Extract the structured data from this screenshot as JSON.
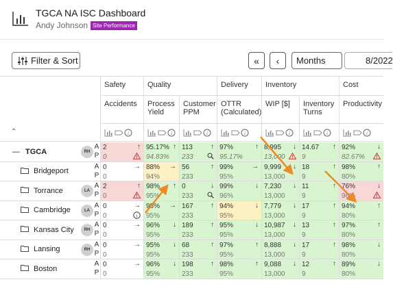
{
  "header": {
    "title": "TGCA NA ISC Dashboard",
    "user": "Andy Johnson",
    "badge": "Site Performance",
    "badge_color": "#9c27b0"
  },
  "toolbar": {
    "filter_label": "Filter & Sort",
    "first_icon": "double-chevron-left-icon",
    "prev_icon": "chevron-left-icon",
    "range": "Months",
    "date": "8/2022"
  },
  "groups": [
    {
      "name": "Safety"
    },
    {
      "name": "Quality"
    },
    {
      "name": "Delivery"
    },
    {
      "name": "Inventory"
    },
    {
      "name": "Cost"
    }
  ],
  "metrics": [
    {
      "name": "Accidents"
    },
    {
      "name": "Process Yield"
    },
    {
      "name": "Customer PPM"
    },
    {
      "name": "OTTR (Calculated)"
    },
    {
      "name": "WIP [$]"
    },
    {
      "name": "Inventory Turns"
    },
    {
      "name": "Productivity"
    }
  ],
  "collapse_icon": "collapse-all-icon",
  "ap_labels": {
    "a": "A",
    "p": "P"
  },
  "rows": [
    {
      "name": "TGCA",
      "initials": "RH",
      "level": 0,
      "toggle": "—",
      "a": [
        [
          "2",
          "↑",
          "r"
        ],
        [
          "95.17%",
          "↑",
          "g"
        ],
        [
          "113",
          "↑",
          "g"
        ],
        [
          "97%",
          "↑",
          "g"
        ],
        [
          "8,995",
          "↓",
          "g"
        ],
        [
          "14.67",
          "↑",
          "g"
        ],
        [
          "92%",
          "↓",
          "g"
        ]
      ],
      "p": [
        [
          "0",
          "warn",
          "r"
        ],
        [
          "94.83%",
          "",
          "g"
        ],
        [
          "233",
          "search",
          "g"
        ],
        [
          "95.17%",
          "",
          "g"
        ],
        [
          "13,000",
          "warn",
          "g"
        ],
        [
          "9",
          "",
          "g"
        ],
        [
          "82.67%",
          "warn",
          "g"
        ]
      ]
    },
    {
      "name": "Bridgeport",
      "initials": "",
      "level": 1,
      "a": [
        [
          "0",
          "→",
          "w"
        ],
        [
          "88%",
          "→",
          "y"
        ],
        [
          "56",
          "↑",
          "g"
        ],
        [
          "99%",
          "→",
          "g"
        ],
        [
          "9,999",
          "↓",
          "g"
        ],
        [
          "18",
          "↑",
          "g"
        ],
        [
          "98%",
          "↑",
          "g"
        ]
      ],
      "p": [
        [
          "0",
          "",
          "w"
        ],
        [
          "94%",
          "",
          "y"
        ],
        [
          "233",
          "",
          "g"
        ],
        [
          "95%",
          "",
          "g"
        ],
        [
          "13,000",
          "",
          "g"
        ],
        [
          "9",
          "",
          "g"
        ],
        [
          "80%",
          "",
          "g"
        ]
      ]
    },
    {
      "name": "Torrance",
      "initials": "LA",
      "level": 1,
      "a": [
        [
          "2",
          "↑",
          "r"
        ],
        [
          "98%",
          "↑",
          "g"
        ],
        [
          "0",
          "↓",
          "g"
        ],
        [
          "99%",
          "↓",
          "g"
        ],
        [
          "7,230",
          "↓",
          "g"
        ],
        [
          "11",
          "↑",
          "g"
        ],
        [
          "76%",
          "↓",
          "r"
        ]
      ],
      "p": [
        [
          "0",
          "warn",
          "r"
        ],
        [
          "95%",
          "",
          "g"
        ],
        [
          "233",
          "search",
          "g"
        ],
        [
          "96%",
          "",
          "g"
        ],
        [
          "13,000",
          "",
          "g"
        ],
        [
          "9",
          "",
          "g"
        ],
        [
          "96%",
          "warn",
          "r"
        ]
      ]
    },
    {
      "name": "Cambridge",
      "initials": "LA",
      "level": 1,
      "a": [
        [
          "0",
          "→",
          "w"
        ],
        [
          "98%",
          "→",
          "g"
        ],
        [
          "167",
          "↑",
          "g"
        ],
        [
          "94%",
          "↓",
          "y"
        ],
        [
          "7,779",
          "↓",
          "g"
        ],
        [
          "17",
          "↑",
          "g"
        ],
        [
          "94%",
          "↑",
          "g"
        ]
      ],
      "p": [
        [
          "0",
          "info",
          "w"
        ],
        [
          "95%",
          "",
          "g"
        ],
        [
          "233",
          "",
          "g"
        ],
        [
          "95%",
          "",
          "y"
        ],
        [
          "13,000",
          "",
          "g"
        ],
        [
          "9",
          "",
          "g"
        ],
        [
          "80%",
          "",
          "g"
        ]
      ]
    },
    {
      "name": "Kansas City",
      "initials": "RH",
      "level": 1,
      "a": [
        [
          "0",
          "→",
          "w"
        ],
        [
          "96%",
          "↓",
          "g"
        ],
        [
          "189",
          "↑",
          "g"
        ],
        [
          "95%",
          "↓",
          "g"
        ],
        [
          "10,987",
          "↓",
          "g"
        ],
        [
          "13",
          "↑",
          "g"
        ],
        [
          "97%",
          "↑",
          "g"
        ]
      ],
      "p": [
        [
          "0",
          "",
          "w"
        ],
        [
          "95%",
          "",
          "g"
        ],
        [
          "233",
          "",
          "g"
        ],
        [
          "95%",
          "",
          "g"
        ],
        [
          "13,000",
          "",
          "g"
        ],
        [
          "9",
          "",
          "g"
        ],
        [
          "80%",
          "",
          "g"
        ]
      ]
    },
    {
      "name": "Lansing",
      "initials": "RH",
      "level": 1,
      "a": [
        [
          "0",
          "→",
          "w"
        ],
        [
          "95%",
          "↓",
          "g"
        ],
        [
          "68",
          "↑",
          "g"
        ],
        [
          "97%",
          "↑",
          "g"
        ],
        [
          "8,888",
          "↓",
          "g"
        ],
        [
          "17",
          "↑",
          "g"
        ],
        [
          "98%",
          "↓",
          "g"
        ]
      ],
      "p": [
        [
          "0",
          "",
          "w"
        ],
        [
          "95%",
          "",
          "g"
        ],
        [
          "233",
          "",
          "g"
        ],
        [
          "95%",
          "",
          "g"
        ],
        [
          "13,000",
          "",
          "g"
        ],
        [
          "9",
          "",
          "g"
        ],
        [
          "80%",
          "",
          "g"
        ]
      ]
    },
    {
      "name": "Boston",
      "initials": "",
      "level": 1,
      "a": [
        [
          "0",
          "→",
          "w"
        ],
        [
          "96%",
          "↓",
          "g"
        ],
        [
          "198",
          "↑",
          "g"
        ],
        [
          "98%",
          "↑",
          "g"
        ],
        [
          "9,088",
          "↓",
          "g"
        ],
        [
          "12",
          "↑",
          "g"
        ],
        [
          "89%",
          "↓",
          "g"
        ]
      ],
      "p": [
        [
          "0",
          "",
          "w"
        ],
        [
          "95%",
          "",
          "g"
        ],
        [
          "233",
          "",
          "g"
        ],
        [
          "95%",
          "",
          "g"
        ],
        [
          "13,000",
          "",
          "g"
        ],
        [
          "9",
          "",
          "g"
        ],
        [
          "80%",
          "",
          "g"
        ]
      ]
    }
  ],
  "colors": {
    "green": "#d8f5cf",
    "red": "#f8d7d7",
    "yellow": "#fdf0c2",
    "warning": "#d32f2f",
    "annotation_arrow": "#f08a24"
  }
}
